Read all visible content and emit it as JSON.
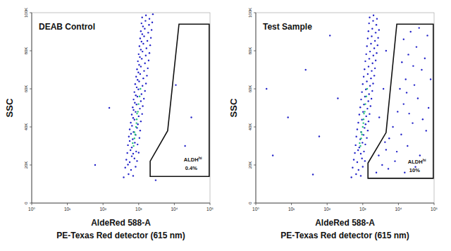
{
  "chart_data": [
    {
      "type": "scatter",
      "title": "DEAB Control",
      "ylabel": "SSC",
      "xlabel": [
        "AldeRed 588-A",
        "PE-Texas Red detector (615 nm)"
      ],
      "log": "x",
      "xlim": [
        1,
        100000
      ],
      "xticks": [
        {
          "value": 1,
          "label": "10⁰"
        },
        {
          "value": 10,
          "label": "10¹"
        },
        {
          "value": 100,
          "label": "10²"
        },
        {
          "value": 1000,
          "label": "10³"
        },
        {
          "value": 10000,
          "label": "10⁴"
        },
        {
          "value": 100000,
          "label": "10⁵"
        }
      ],
      "ylim": [
        0,
        100000
      ],
      "yticks": [
        0,
        {
          "value": 20000,
          "label": "20K"
        },
        {
          "value": 40000,
          "label": "40K"
        },
        {
          "value": 60000,
          "label": "60K"
        },
        {
          "value": 80000,
          "label": "80K"
        },
        {
          "value": 100000,
          "label": "100K"
        }
      ],
      "series": [
        {
          "color": "#2323c8",
          "marker": "dot",
          "x": [
            380,
            520,
            700,
            420,
            610,
            820,
            500,
            450,
            560,
            760,
            900,
            640,
            480,
            590,
            700,
            850,
            1000,
            500,
            640,
            780,
            930,
            560,
            530,
            680,
            820,
            1050,
            610,
            560,
            720,
            900,
            1100,
            650,
            600,
            760,
            950,
            1150,
            700,
            640,
            820,
            1000,
            1250,
            720,
            680,
            870,
            1080,
            1300,
            780,
            720,
            920,
            1150,
            1400,
            830,
            760,
            980,
            1200,
            1500,
            880,
            800,
            1030,
            1280,
            1600,
            930,
            850,
            1100,
            1350,
            1700,
            980,
            900,
            1150,
            1420,
            1800,
            1030,
            950,
            1220,
            1500,
            1900,
            1080,
            1000,
            1280,
            1580,
            2000,
            1150,
            1050,
            1350,
            1650,
            2100,
            1200,
            1100,
            1420,
            1750,
            2200,
            1260,
            1150,
            1480,
            1850,
            2300,
            1320,
            1200,
            1550,
            1950,
            2400,
            1250,
            1600,
            2000,
            2500,
            150,
            11000,
            20000,
            60,
            3000,
            30000
          ],
          "values": [
            13500,
            15200,
            14300,
            18600,
            17400,
            19100,
            20200,
            22800,
            21500,
            23400,
            22100,
            24600,
            26300,
            27800,
            25900,
            27100,
            26500,
            30400,
            29200,
            31700,
            30800,
            32600,
            34900,
            33500,
            35800,
            34200,
            36400,
            38700,
            37300,
            39500,
            38100,
            40600,
            42200,
            43800,
            41400,
            42900,
            44700,
            46500,
            47900,
            45600,
            46800,
            48900,
            50300,
            51800,
            49600,
            50900,
            52700,
            54400,
            55900,
            53500,
            54800,
            56600,
            58300,
            59700,
            57200,
            58900,
            60800,
            62500,
            63900,
            61600,
            62800,
            64700,
            66400,
            67800,
            65500,
            66900,
            68600,
            70300,
            71700,
            69400,
            70800,
            72600,
            74500,
            75800,
            73400,
            74900,
            76700,
            78200,
            79600,
            77500,
            78800,
            80600,
            82400,
            83700,
            81300,
            82900,
            84800,
            86500,
            87600,
            85200,
            86800,
            88700,
            90300,
            91600,
            89500,
            90900,
            92800,
            94400,
            95700,
            93600,
            94900,
            97500,
            98600,
            96800,
            99200,
            50000,
            62000,
            30000,
            20000,
            12000,
            45000
          ]
        },
        {
          "color": "#22c27a",
          "marker": "dot",
          "x": [
            720,
            680,
            800,
            760,
            870,
            950,
            900,
            840,
            990,
            1060,
            760,
            880,
            1120
          ],
          "values": [
            30000,
            31500,
            36000,
            37200,
            42000,
            48000,
            47000,
            40000,
            52000,
            56000,
            34000,
            44000,
            60000
          ]
        }
      ],
      "gate": {
        "label": "ALDH",
        "label_sup": "hi",
        "percent_label": "0.4%",
        "x": [
          13500,
          95000,
          95000,
          2100,
          2100,
          6500
        ],
        "y": [
          94000,
          94000,
          14000,
          14000,
          22000,
          38000
        ]
      }
    },
    {
      "type": "scatter",
      "title": "Test Sample",
      "ylabel": "SSC",
      "xlabel": [
        "AldeRed 588-A",
        "PE-Texas Red detector (615 nm)"
      ],
      "log": "x",
      "xlim": [
        1,
        100000
      ],
      "xticks": [
        {
          "value": 1,
          "label": "10⁰"
        },
        {
          "value": 10,
          "label": "10¹"
        },
        {
          "value": 100,
          "label": "10²"
        },
        {
          "value": 1000,
          "label": "10³"
        },
        {
          "value": 10000,
          "label": "10⁴"
        },
        {
          "value": 100000,
          "label": "10⁵"
        }
      ],
      "ylim": [
        0,
        100000
      ],
      "yticks": [
        0,
        {
          "value": 20000,
          "label": "20K"
        },
        {
          "value": 40000,
          "label": "40K"
        },
        {
          "value": 60000,
          "label": "60K"
        },
        {
          "value": 80000,
          "label": "80K"
        },
        {
          "value": 100000,
          "label": "100K"
        }
      ],
      "series": [
        {
          "color": "#2323c8",
          "marker": "dot",
          "x": [
            480,
            650,
            880,
            520,
            760,
            1000,
            560,
            700,
            950,
            1150,
            600,
            740,
            880,
            1080,
            630,
            800,
            980,
            1180,
            660,
            850,
            1050,
            1300,
            700,
            900,
            1120,
            1380,
            750,
            950,
            1200,
            1450,
            800,
            1020,
            1250,
            1550,
            850,
            1080,
            1350,
            1650,
            900,
            1150,
            1430,
            1750,
            950,
            1220,
            1500,
            1850,
            1000,
            1300,
            1600,
            1950,
            1060,
            1380,
            1700,
            2100,
            1120,
            1450,
            1780,
            2200,
            1180,
            1520,
            1880,
            2300,
            1250,
            1600,
            1980,
            2450,
            1310,
            1700,
            2100,
            2600,
            1380,
            1780,
            2200,
            2700,
            1440,
            1850,
            2300,
            2850,
            1500,
            1950,
            2400,
            1560,
            2000,
            2500,
            3,
            8,
            25,
            60,
            120,
            2,
            40,
            200,
            2400,
            3500,
            5200,
            8000,
            15000,
            30000,
            2800,
            4500,
            9000,
            18000,
            40000,
            5500,
            7000,
            12000,
            25000,
            60000,
            9500,
            14000,
            20000,
            35000,
            70000,
            11000,
            16000,
            28000,
            45000,
            12500,
            19000,
            32000,
            55000,
            80000,
            14000,
            22000,
            38000,
            65000,
            17000,
            26000,
            48000,
            4200,
            2900,
            3800,
            4500
          ],
          "values": [
            13500,
            15200,
            14300,
            18600,
            17400,
            19100,
            22800,
            21500,
            23400,
            22100,
            26300,
            27800,
            25900,
            27100,
            30400,
            29200,
            31700,
            30800,
            34900,
            33500,
            35800,
            34200,
            38700,
            37300,
            39500,
            38100,
            42200,
            43800,
            41400,
            42900,
            46500,
            47900,
            45600,
            46800,
            50300,
            51800,
            49600,
            50900,
            54400,
            55900,
            53500,
            54800,
            58300,
            59700,
            57200,
            58900,
            62500,
            63900,
            61600,
            62800,
            66400,
            67800,
            65500,
            66900,
            70300,
            71700,
            69400,
            70800,
            74500,
            75800,
            73400,
            74900,
            78200,
            79600,
            77500,
            78800,
            82400,
            83700,
            81300,
            82900,
            86500,
            87600,
            85200,
            86800,
            90300,
            91600,
            89500,
            90900,
            94400,
            95700,
            93600,
            97500,
            98600,
            96800,
            25000,
            45000,
            70000,
            35000,
            88000,
            60000,
            15000,
            55000,
            16000,
            20000,
            18000,
            22000,
            16000,
            19000,
            25000,
            28000,
            27000,
            30000,
            25000,
            34000,
            40000,
            36000,
            42000,
            38000,
            48000,
            52000,
            47000,
            55000,
            50000,
            60000,
            65000,
            62000,
            70000,
            74000,
            78000,
            82000,
            76000,
            65000,
            86000,
            90000,
            92000,
            88000,
            58000,
            72000,
            44000,
            32000,
            45000,
            60000,
            80000
          ]
        },
        {
          "color": "#22c27a",
          "marker": "dot",
          "x": [
            860,
            820,
            950,
            910,
            1040,
            1130,
            1080,
            1000,
            1180,
            1260,
            900,
            1050,
            1330
          ],
          "values": [
            30000,
            31500,
            36000,
            37200,
            42000,
            48000,
            47000,
            40000,
            52000,
            56000,
            34000,
            44000,
            60000
          ]
        }
      ],
      "gate": {
        "label": "ALDH",
        "label_sup": "hi",
        "percent_label": "10%",
        "x": [
          9000,
          95000,
          95000,
          1400,
          1400,
          4500
        ],
        "y": [
          94000,
          94000,
          13000,
          13000,
          21000,
          37000
        ]
      }
    }
  ]
}
